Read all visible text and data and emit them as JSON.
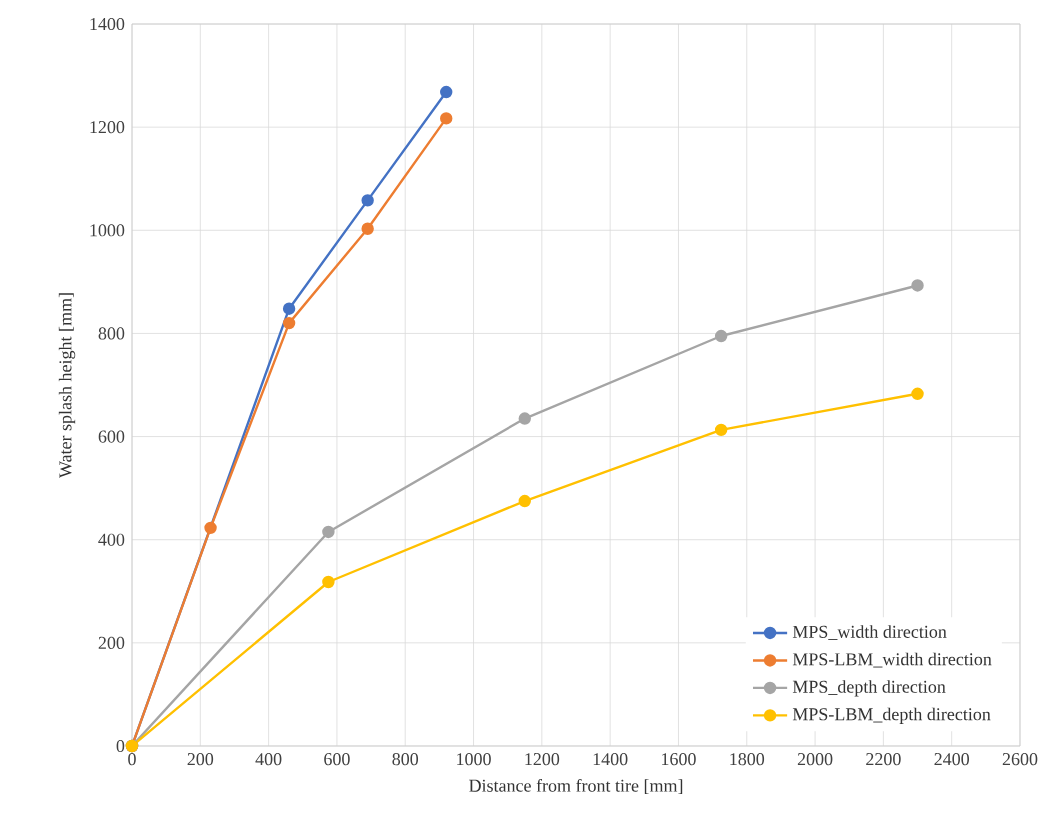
{
  "chart_data": {
    "type": "line",
    "xlabel": "Distance from front tire [mm]",
    "ylabel": "Water splash height [mm]",
    "xlim": [
      0,
      2600
    ],
    "xticks": [
      0,
      200,
      400,
      600,
      800,
      1000,
      1200,
      1400,
      1600,
      1800,
      2000,
      2200,
      2400,
      2600
    ],
    "ylim": [
      0,
      1400
    ],
    "yticks": [
      0,
      200,
      400,
      600,
      800,
      1000,
      1200,
      1400
    ],
    "grid": true,
    "legend": "bottom right",
    "marker": "circle",
    "line_style": "solid",
    "series": [
      {
        "name": "MPS_width direction",
        "color": "#4472c4",
        "x": [
          0,
          230,
          460,
          690,
          920
        ],
        "values": [
          0,
          null,
          848,
          1058,
          1268
        ]
      },
      {
        "name": "MPS-LBM_width direction",
        "color": "#ed7d31",
        "x": [
          0,
          230,
          460,
          690,
          920
        ],
        "values": [
          0,
          423,
          820,
          1003,
          1217
        ]
      },
      {
        "name": "MPS_depth direction",
        "color": "#a5a5a5",
        "x": [
          0,
          575,
          1150,
          1725,
          2300
        ],
        "values": [
          0,
          415,
          635,
          795,
          893
        ]
      },
      {
        "name": "MPS-LBM_depth direction",
        "color": "#ffc000",
        "x": [
          0,
          575,
          1150,
          1725,
          2300
        ],
        "values": [
          0,
          318,
          475,
          613,
          683
        ]
      }
    ]
  }
}
